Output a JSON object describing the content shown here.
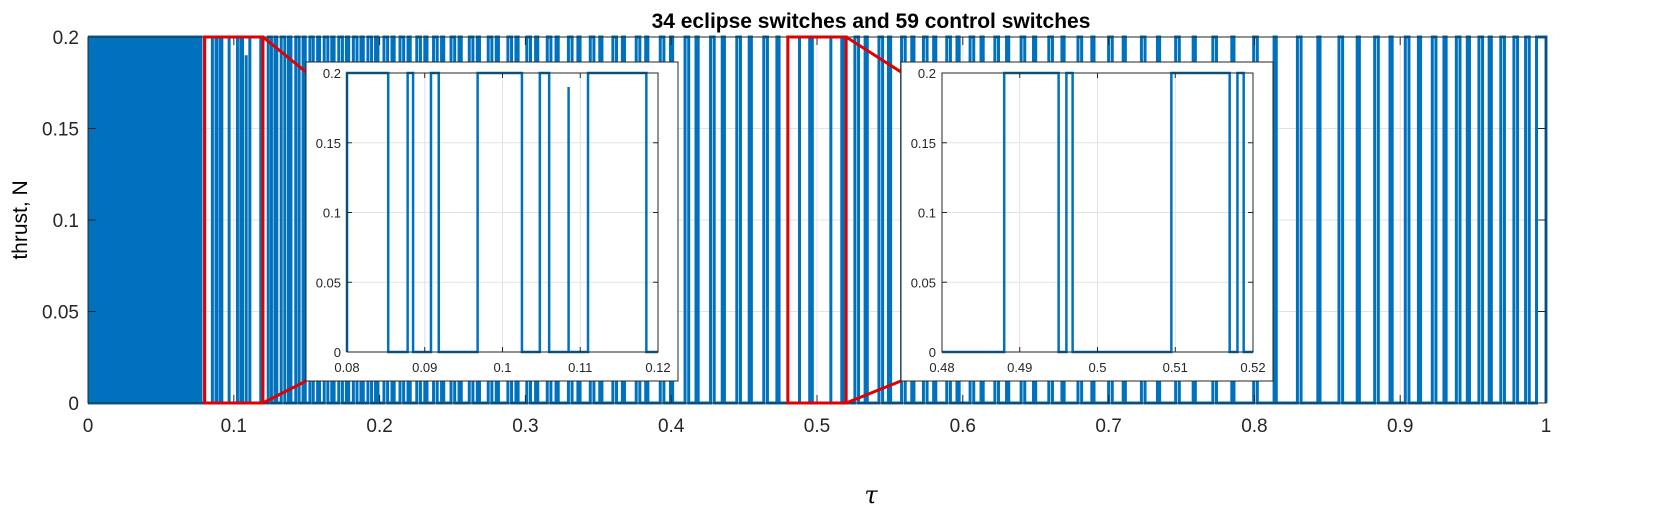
{
  "chart_data": {
    "type": "line",
    "title": "34 eclipse switches and 59 control switches",
    "xlabel": "τ",
    "ylabel": "thrust, N",
    "xlim": [
      0,
      1
    ],
    "ylim": [
      0,
      0.2
    ],
    "xticks": [
      "0",
      "0.1",
      "0.2",
      "0.3",
      "0.4",
      "0.5",
      "0.6",
      "0.7",
      "0.8",
      "0.9",
      "1"
    ],
    "yticks": [
      "0",
      "0.05",
      "0.1",
      "0.15",
      "0.2"
    ],
    "grid": true,
    "series": [
      {
        "color": "#0072BD",
        "on_intervals": [
          [
            0.001,
            0.003
          ],
          [
            0.0045,
            0.006
          ],
          [
            0.0075,
            0.0095
          ],
          [
            0.011,
            0.0125
          ],
          [
            0.0145,
            0.016
          ],
          [
            0.0175,
            0.0195
          ],
          [
            0.0215,
            0.023
          ],
          [
            0.0245,
            0.0265
          ],
          [
            0.028,
            0.03
          ],
          [
            0.032,
            0.0335
          ],
          [
            0.035,
            0.037
          ],
          [
            0.039,
            0.0405
          ],
          [
            0.0425,
            0.0445
          ],
          [
            0.046,
            0.048
          ],
          [
            0.05,
            0.0515
          ],
          [
            0.0535,
            0.0555
          ],
          [
            0.0575,
            0.059
          ],
          [
            0.061,
            0.063
          ],
          [
            0.065,
            0.0665
          ],
          [
            0.0685,
            0.07
          ],
          [
            0.072,
            0.0735
          ],
          [
            0.0755,
            0.0775
          ],
          [
            0.08,
            0.0853
          ],
          [
            0.0878,
            0.0885
          ],
          [
            0.0908,
            0.0918
          ],
          [
            0.0968,
            0.1025
          ],
          [
            0.1048,
            0.106
          ],
          [
            0.111,
            0.1185
          ],
          [
            0.1236,
            0.1258
          ],
          [
            0.1282,
            0.1295
          ],
          [
            0.1325,
            0.135
          ],
          [
            0.1375,
            0.1392
          ],
          [
            0.1425,
            0.1448
          ],
          [
            0.1475,
            0.149
          ],
          [
            0.1522,
            0.1545
          ],
          [
            0.1575,
            0.1588
          ],
          [
            0.162,
            0.1645
          ],
          [
            0.1672,
            0.1688
          ],
          [
            0.172,
            0.1745
          ],
          [
            0.1772,
            0.1788
          ],
          [
            0.182,
            0.1845
          ],
          [
            0.1872,
            0.1888
          ],
          [
            0.192,
            0.1945
          ],
          [
            0.1972,
            0.1988
          ],
          [
            0.203,
            0.2055
          ],
          [
            0.2085,
            0.21
          ],
          [
            0.214,
            0.2165
          ],
          [
            0.2195,
            0.221
          ],
          [
            0.2255,
            0.228
          ],
          [
            0.231,
            0.2325
          ],
          [
            0.237,
            0.2395
          ],
          [
            0.2425,
            0.244
          ],
          [
            0.249,
            0.2515
          ],
          [
            0.2545,
            0.256
          ],
          [
            0.2615,
            0.264
          ],
          [
            0.267,
            0.2685
          ],
          [
            0.2745,
            0.277
          ],
          [
            0.28,
            0.2815
          ],
          [
            0.288,
            0.2905
          ],
          [
            0.2935,
            0.295
          ],
          [
            0.301,
            0.3035
          ],
          [
            0.307,
            0.3085
          ],
          [
            0.315,
            0.3175
          ],
          [
            0.321,
            0.3225
          ],
          [
            0.3295,
            0.332
          ],
          [
            0.336,
            0.3375
          ],
          [
            0.3445,
            0.347
          ],
          [
            0.351,
            0.3525
          ],
          [
            0.36,
            0.3625
          ],
          [
            0.3665,
            0.368
          ],
          [
            0.376,
            0.3785
          ],
          [
            0.3825,
            0.384
          ],
          [
            0.3925,
            0.395
          ],
          [
            0.3995,
            0.401
          ],
          [
            0.4095,
            0.412
          ],
          [
            0.417,
            0.4185
          ],
          [
            0.427,
            0.4295
          ],
          [
            0.435,
            0.4365
          ],
          [
            0.445,
            0.4475
          ],
          [
            0.4535,
            0.455
          ],
          [
            0.4635,
            0.466
          ],
          [
            0.4725,
            0.474
          ],
          [
            0.488,
            0.495
          ],
          [
            0.496,
            0.4968
          ],
          [
            0.5095,
            0.517
          ],
          [
            0.518,
            0.5188
          ],
          [
            0.526,
            0.5285
          ],
          [
            0.533,
            0.5345
          ],
          [
            0.5425,
            0.545
          ],
          [
            0.549,
            0.5505
          ],
          [
            0.558,
            0.5605
          ],
          [
            0.565,
            0.5665
          ],
          [
            0.573,
            0.5755
          ],
          [
            0.58,
            0.5815
          ],
          [
            0.589,
            0.5915
          ],
          [
            0.596,
            0.5975
          ],
          [
            0.605,
            0.6075
          ],
          [
            0.6125,
            0.614
          ],
          [
            0.622,
            0.6245
          ],
          [
            0.63,
            0.6315
          ],
          [
            0.64,
            0.6425
          ],
          [
            0.6485,
            0.65
          ],
          [
            0.659,
            0.6615
          ],
          [
            0.668,
            0.6695
          ],
          [
            0.679,
            0.6815
          ],
          [
            0.6885,
            0.69
          ],
          [
            0.7,
            0.7025
          ],
          [
            0.71,
            0.7115
          ],
          [
            0.7225,
            0.725
          ],
          [
            0.7335,
            0.735
          ],
          [
            0.746,
            0.7485
          ],
          [
            0.758,
            0.7595
          ],
          [
            0.7715,
            0.774
          ],
          [
            0.7845,
            0.786
          ],
          [
            0.7995,
            0.802
          ],
          [
            0.8135,
            0.815
          ],
          [
            0.8295,
            0.832
          ],
          [
            0.8435,
            0.845
          ],
          [
            0.858,
            0.8605
          ],
          [
            0.8705,
            0.872
          ],
          [
            0.8825,
            0.885
          ],
          [
            0.893,
            0.8945
          ],
          [
            0.9035,
            0.906
          ],
          [
            0.9125,
            0.914
          ],
          [
            0.922,
            0.9245
          ],
          [
            0.93,
            0.9315
          ],
          [
            0.9385,
            0.941
          ],
          [
            0.946,
            0.9475
          ],
          [
            0.954,
            0.9565
          ],
          [
            0.961,
            0.9625
          ],
          [
            0.969,
            0.9715
          ],
          [
            0.978,
            0.9805
          ],
          [
            0.986,
            0.9885
          ],
          [
            0.9935,
            1.0
          ]
        ],
        "spikes": [
          [
            0.1085,
            0.19
          ]
        ]
      }
    ],
    "insets": [
      {
        "xlim": [
          0.08,
          0.12
        ],
        "ylim": [
          0,
          0.2
        ],
        "xticks": [
          "0.08",
          "0.09",
          "0.1",
          "0.11",
          "0.12"
        ],
        "yticks": [
          "0",
          "0.05",
          "0.1",
          "0.15",
          "0.2"
        ],
        "grid": true
      },
      {
        "xlim": [
          0.48,
          0.52
        ],
        "ylim": [
          0,
          0.2
        ],
        "xticks": [
          "0.48",
          "0.49",
          "0.5",
          "0.51",
          "0.52"
        ],
        "yticks": [
          "0",
          "0.05",
          "0.1",
          "0.15",
          "0.2"
        ],
        "grid": true
      }
    ],
    "zoom_color": "#e00000"
  }
}
